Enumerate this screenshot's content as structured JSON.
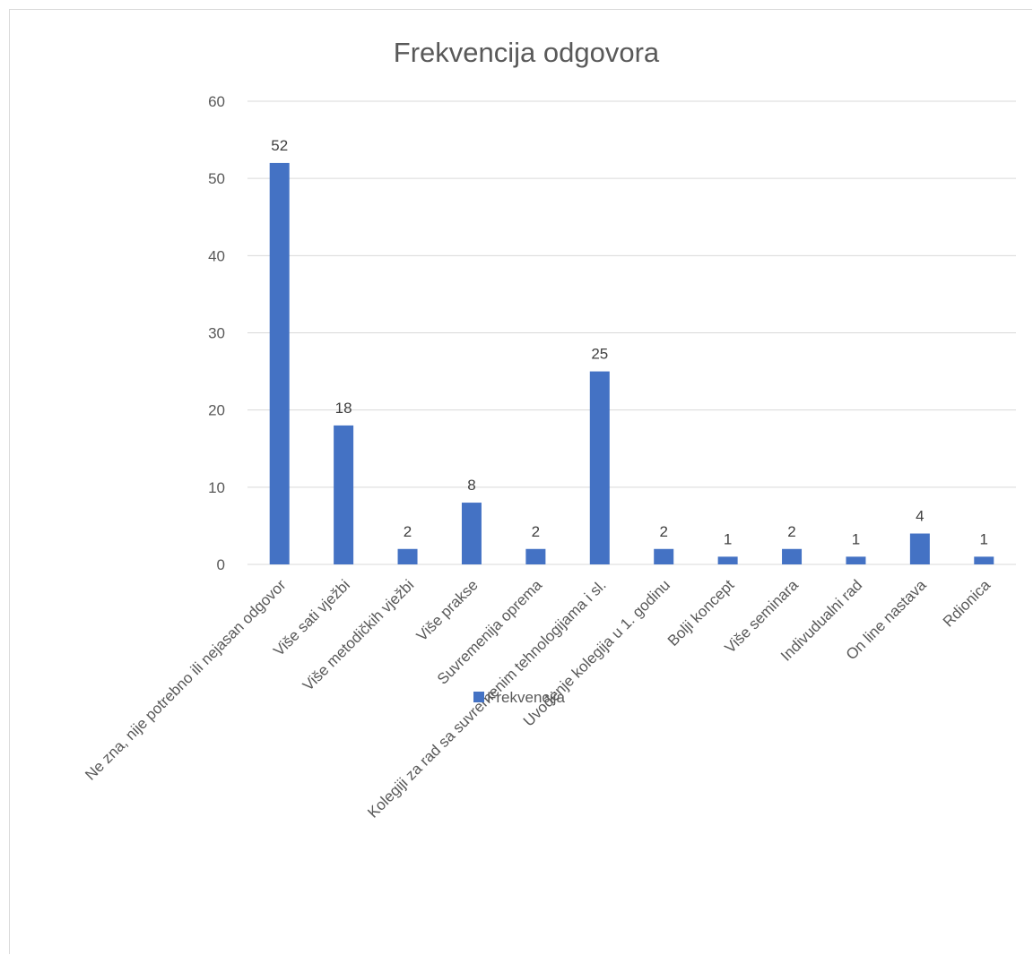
{
  "chart_data": {
    "type": "bar",
    "title": "Frekvencija odgovora",
    "xlabel": "",
    "ylabel": "",
    "ylim": [
      0,
      60
    ],
    "yticks": [
      0,
      10,
      20,
      30,
      40,
      50,
      60
    ],
    "grid": true,
    "legend_position": "bottom",
    "categories": [
      "Ne zna, nije potrebno ili nejasan odgovor",
      "Više sati vježbi",
      "Više metodičkih vježbi",
      "Više prakse",
      "Suvremenija oprema",
      "Kolegiji za rad sa suvremenim tehnologijama i sl.",
      "Uvođenje kolegija u 1. godinu",
      "Bolji koncept",
      "Više seminara",
      "Indivudualni rad",
      "On line nastava",
      "Rdionica"
    ],
    "series": [
      {
        "name": "Frekvencija",
        "color": "#4472c4",
        "values": [
          52,
          18,
          2,
          8,
          2,
          25,
          2,
          1,
          2,
          1,
          4,
          1
        ]
      }
    ]
  }
}
